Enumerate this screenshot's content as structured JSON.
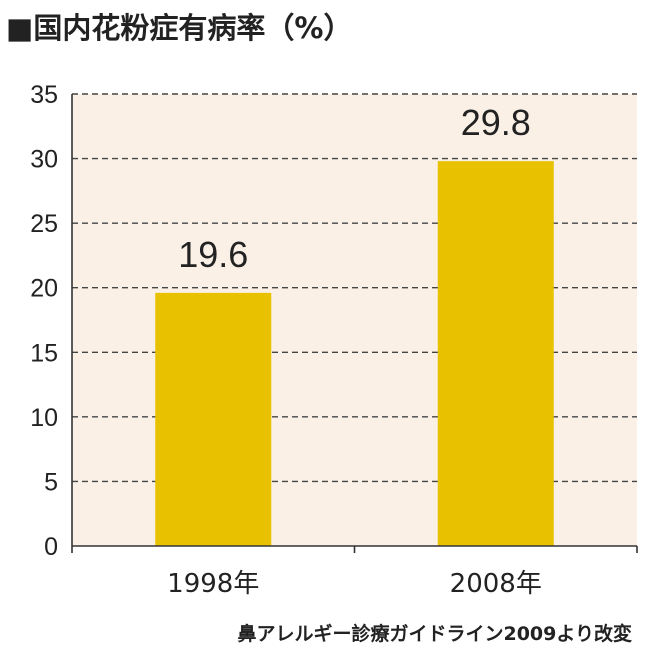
{
  "chart_data": {
    "type": "bar",
    "title": "■国内花粉症有病率（%）",
    "categories": [
      "1998年",
      "2008年"
    ],
    "values": [
      19.6,
      29.8
    ],
    "value_labels": [
      "19.6",
      "29.8"
    ],
    "ylim": [
      0,
      35
    ],
    "yticks": [
      0,
      5,
      10,
      15,
      20,
      25,
      30,
      35
    ],
    "grid": true,
    "legend": "none",
    "source": "鼻アレルギー診療ガイドライン2009より改変"
  },
  "colors": {
    "bar": "#E8C100",
    "plot_background": "#FAF0E6",
    "axis": "#333333",
    "grid": "#444444",
    "text": "#222222"
  }
}
